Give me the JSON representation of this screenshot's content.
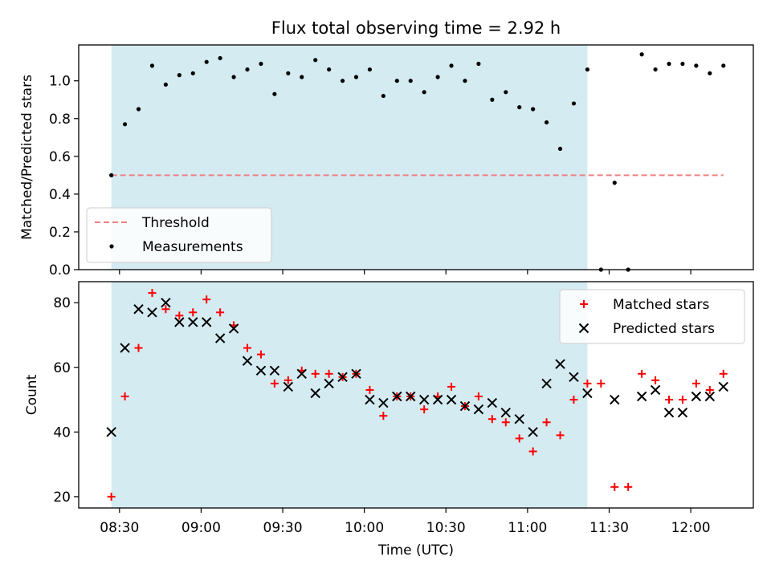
{
  "chart_data": {
    "type": "scatter",
    "title": "Flux total observing time = 2.92 h",
    "xlabel": "Time (UTC)",
    "x_ticks": [
      "08:30",
      "09:00",
      "09:30",
      "10:00",
      "10:30",
      "11:00",
      "11:30",
      "12:00"
    ],
    "xlim": [
      "08:15",
      "12:23"
    ],
    "shaded_span": [
      "08:27",
      "11:22"
    ],
    "panels": [
      {
        "ylabel": "Matched/Predicted stars",
        "ylim": [
          0,
          1.19
        ],
        "y_ticks": [
          "0.0",
          "0.2",
          "0.4",
          "0.6",
          "0.8",
          "1.0"
        ],
        "legend_position": "lower-left",
        "threshold": {
          "name": "Threshold",
          "value": 0.5,
          "x_start": "08:27",
          "x_end": "12:12",
          "color": "#f08080"
        },
        "measurements": {
          "name": "Measurements",
          "color": "#000000",
          "points": [
            [
              "08:27",
              0.5
            ],
            [
              "08:32",
              0.77
            ],
            [
              "08:37",
              0.85
            ],
            [
              "08:42",
              1.08
            ],
            [
              "08:47",
              0.98
            ],
            [
              "08:52",
              1.03
            ],
            [
              "08:57",
              1.04
            ],
            [
              "09:02",
              1.1
            ],
            [
              "09:07",
              1.12
            ],
            [
              "09:12",
              1.02
            ],
            [
              "09:17",
              1.06
            ],
            [
              "09:22",
              1.09
            ],
            [
              "09:27",
              0.93
            ],
            [
              "09:32",
              1.04
            ],
            [
              "09:37",
              1.02
            ],
            [
              "09:42",
              1.11
            ],
            [
              "09:47",
              1.06
            ],
            [
              "09:52",
              1.0
            ],
            [
              "09:57",
              1.02
            ],
            [
              "10:02",
              1.06
            ],
            [
              "10:07",
              0.92
            ],
            [
              "10:12",
              1.0
            ],
            [
              "10:17",
              1.0
            ],
            [
              "10:22",
              0.94
            ],
            [
              "10:27",
              1.02
            ],
            [
              "10:32",
              1.08
            ],
            [
              "10:37",
              1.0
            ],
            [
              "10:42",
              1.09
            ],
            [
              "10:47",
              0.9
            ],
            [
              "10:52",
              0.94
            ],
            [
              "10:57",
              0.86
            ],
            [
              "11:02",
              0.85
            ],
            [
              "11:07",
              0.78
            ],
            [
              "11:12",
              0.64
            ],
            [
              "11:17",
              0.88
            ],
            [
              "11:22",
              1.06
            ],
            [
              "11:27",
              0.0
            ],
            [
              "11:32",
              0.46
            ],
            [
              "11:37",
              0.0
            ],
            [
              "11:42",
              1.14
            ],
            [
              "11:47",
              1.06
            ],
            [
              "11:52",
              1.09
            ],
            [
              "11:57",
              1.09
            ],
            [
              "12:02",
              1.08
            ],
            [
              "12:07",
              1.04
            ],
            [
              "12:12",
              1.08
            ]
          ]
        }
      },
      {
        "ylabel": "Count",
        "ylim": [
          16.5,
          86.5
        ],
        "y_ticks": [
          "20",
          "40",
          "60",
          "80"
        ],
        "legend_position": "upper-right",
        "series": [
          {
            "name": "Matched stars",
            "marker": "plus",
            "color": "#ff0000",
            "points": [
              [
                "08:27",
                20
              ],
              [
                "08:32",
                51
              ],
              [
                "08:37",
                66
              ],
              [
                "08:42",
                83
              ],
              [
                "08:47",
                78
              ],
              [
                "08:52",
                76
              ],
              [
                "08:57",
                77
              ],
              [
                "09:02",
                81
              ],
              [
                "09:07",
                77
              ],
              [
                "09:12",
                73
              ],
              [
                "09:17",
                66
              ],
              [
                "09:22",
                64
              ],
              [
                "09:27",
                55
              ],
              [
                "09:32",
                56
              ],
              [
                "09:37",
                59
              ],
              [
                "09:42",
                58
              ],
              [
                "09:47",
                58
              ],
              [
                "09:52",
                57
              ],
              [
                "09:57",
                58
              ],
              [
                "10:02",
                53
              ],
              [
                "10:07",
                45
              ],
              [
                "10:12",
                51
              ],
              [
                "10:17",
                51
              ],
              [
                "10:22",
                47
              ],
              [
                "10:27",
                51
              ],
              [
                "10:32",
                54
              ],
              [
                "10:37",
                48
              ],
              [
                "10:42",
                51
              ],
              [
                "10:47",
                44
              ],
              [
                "10:52",
                43
              ],
              [
                "10:57",
                38
              ],
              [
                "11:02",
                34
              ],
              [
                "11:07",
                43
              ],
              [
                "11:12",
                39
              ],
              [
                "11:17",
                50
              ],
              [
                "11:22",
                55
              ],
              [
                "11:27",
                55
              ],
              [
                "11:32",
                23
              ],
              [
                "11:37",
                23
              ],
              [
                "11:42",
                58
              ],
              [
                "11:47",
                56
              ],
              [
                "11:52",
                50
              ],
              [
                "11:57",
                50
              ],
              [
                "12:02",
                55
              ],
              [
                "12:07",
                53
              ],
              [
                "12:12",
                58
              ]
            ]
          },
          {
            "name": "Predicted stars",
            "marker": "x",
            "color": "#000000",
            "points": [
              [
                "08:27",
                40
              ],
              [
                "08:32",
                66
              ],
              [
                "08:37",
                78
              ],
              [
                "08:42",
                77
              ],
              [
                "08:47",
                80
              ],
              [
                "08:52",
                74
              ],
              [
                "08:57",
                74
              ],
              [
                "09:02",
                74
              ],
              [
                "09:07",
                69
              ],
              [
                "09:12",
                72
              ],
              [
                "09:17",
                62
              ],
              [
                "09:22",
                59
              ],
              [
                "09:27",
                59
              ],
              [
                "09:32",
                54
              ],
              [
                "09:37",
                58
              ],
              [
                "09:42",
                52
              ],
              [
                "09:47",
                55
              ],
              [
                "09:52",
                57
              ],
              [
                "09:57",
                58
              ],
              [
                "10:02",
                50
              ],
              [
                "10:07",
                49
              ],
              [
                "10:12",
                51
              ],
              [
                "10:17",
                51
              ],
              [
                "10:22",
                50
              ],
              [
                "10:27",
                50
              ],
              [
                "10:32",
                50
              ],
              [
                "10:37",
                48
              ],
              [
                "10:42",
                47
              ],
              [
                "10:47",
                49
              ],
              [
                "10:52",
                46
              ],
              [
                "10:57",
                44
              ],
              [
                "11:02",
                40
              ],
              [
                "11:07",
                55
              ],
              [
                "11:12",
                61
              ],
              [
                "11:17",
                57
              ],
              [
                "11:22",
                52
              ],
              [
                "11:32",
                50
              ],
              [
                "11:42",
                51
              ],
              [
                "11:47",
                53
              ],
              [
                "11:52",
                46
              ],
              [
                "11:57",
                46
              ],
              [
                "12:02",
                51
              ],
              [
                "12:07",
                51
              ],
              [
                "12:12",
                54
              ]
            ]
          }
        ]
      }
    ],
    "colors": {
      "shading": "#add8e6",
      "frame": "#000000"
    }
  }
}
